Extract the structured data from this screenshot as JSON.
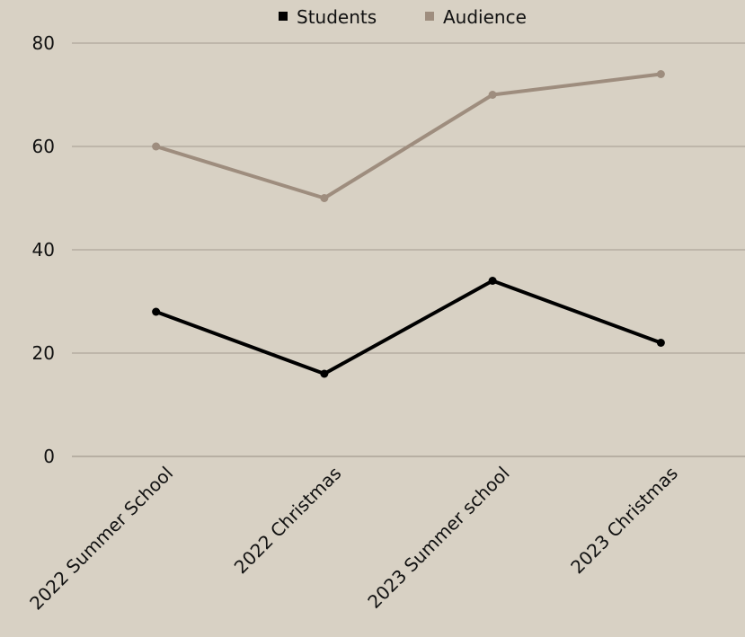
{
  "chart_data": {
    "type": "line",
    "categories": [
      "2022 Summer School",
      "2022 Christmas",
      "2023 Summer school",
      "2023 Christmas"
    ],
    "series": [
      {
        "name": "Students",
        "values": [
          28,
          16,
          34,
          22
        ],
        "color": "#000000"
      },
      {
        "name": "Audience",
        "values": [
          60,
          50,
          70,
          74
        ],
        "color": "#9e8d7e"
      }
    ],
    "y_ticks": [
      "0",
      "20",
      "40",
      "60",
      "80"
    ],
    "ylim": [
      0,
      80
    ],
    "grid": true,
    "legend_position": "top-center"
  },
  "colors": {
    "background": "#d8d1c4",
    "gridline": "#a39b8f"
  }
}
